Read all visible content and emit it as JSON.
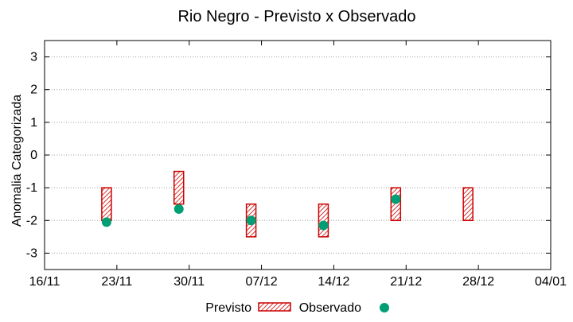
{
  "chart_data": {
    "type": "range",
    "title": "Rio Negro - Previsto x Observado",
    "xlabel": "",
    "ylabel": "Anomalia Categorizada",
    "ylim": [
      -3.5,
      3.5
    ],
    "yticks": [
      3,
      2,
      1,
      0,
      -1,
      -2,
      -3
    ],
    "yticklabels": [
      "3",
      "2",
      "1",
      "0",
      "-1",
      "-2",
      "-3"
    ],
    "xticklabels": [
      "16/11",
      "23/11",
      "30/11",
      "07/12",
      "14/12",
      "21/12",
      "28/12",
      "04/01"
    ],
    "grid": true,
    "legend_position": "bottom",
    "series": [
      {
        "name": "Previsto",
        "kind": "range-box",
        "color": "#cc0000",
        "x": [
          "2012-11-22",
          "2012-11-29",
          "2012-12-06",
          "2012-12-13",
          "2012-12-20",
          "2012-12-27"
        ],
        "low": [
          -2,
          -1.5,
          -2.5,
          -2.5,
          -2,
          -2
        ],
        "high": [
          -1,
          -0.5,
          -1.5,
          -1.5,
          -1,
          -1
        ]
      },
      {
        "name": "Observado",
        "kind": "point",
        "color": "#009e73",
        "x": [
          "2012-11-22",
          "2012-11-29",
          "2012-12-06",
          "2012-12-13",
          "2012-12-20"
        ],
        "values": [
          -2.05,
          -1.65,
          -2.0,
          -2.15,
          -1.35
        ]
      }
    ]
  }
}
